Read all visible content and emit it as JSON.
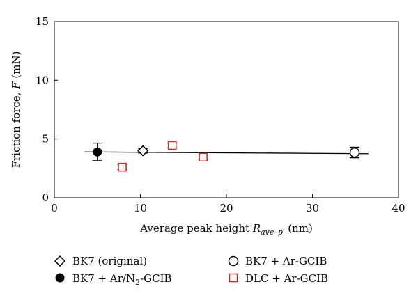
{
  "chart_data": {
    "type": "scatter",
    "xlabel": {
      "text": "Average peak height ",
      "math": "R",
      "sub": "ave–p′",
      "unit": "  (nm)"
    },
    "ylabel": {
      "text": "Friction force, ",
      "math": "F",
      "unit": "  (mN)"
    },
    "xlim": [
      0,
      40
    ],
    "ylim": [
      0,
      15
    ],
    "xticks": [
      0,
      10,
      20,
      30,
      40
    ],
    "yticks": [
      0,
      5,
      10,
      15
    ],
    "grid": false,
    "legend_position": "bottom",
    "series": [
      {
        "name": "BK7 (original)",
        "marker": "diamond-open",
        "color": "#000000",
        "points": [
          {
            "x": 10.3,
            "y": 4.0,
            "err": 0.2
          }
        ]
      },
      {
        "name": "BK7 + Ar-GCIB",
        "marker": "circle-open",
        "color": "#000000",
        "points": [
          {
            "x": 34.9,
            "y": 3.85,
            "err": 0.45
          }
        ]
      },
      {
        "name": "BK7 + Ar/N",
        "name_sub": "2",
        "name_suffix": "-GCIB",
        "marker": "circle-filled",
        "color": "#000000",
        "points": [
          {
            "x": 5.0,
            "y": 3.9,
            "err": 0.75
          }
        ]
      },
      {
        "name": "DLC + Ar-GCIB",
        "marker": "square-open",
        "color": "#cc2222",
        "points": [
          {
            "x": 7.9,
            "y": 2.6,
            "err": 0.2
          },
          {
            "x": 13.7,
            "y": 4.45,
            "err": 0.2
          },
          {
            "x": 17.3,
            "y": 3.45,
            "err": 0.2
          }
        ]
      }
    ],
    "fit_line": {
      "x": [
        3.5,
        36.5
      ],
      "y": [
        3.9,
        3.75
      ]
    }
  }
}
